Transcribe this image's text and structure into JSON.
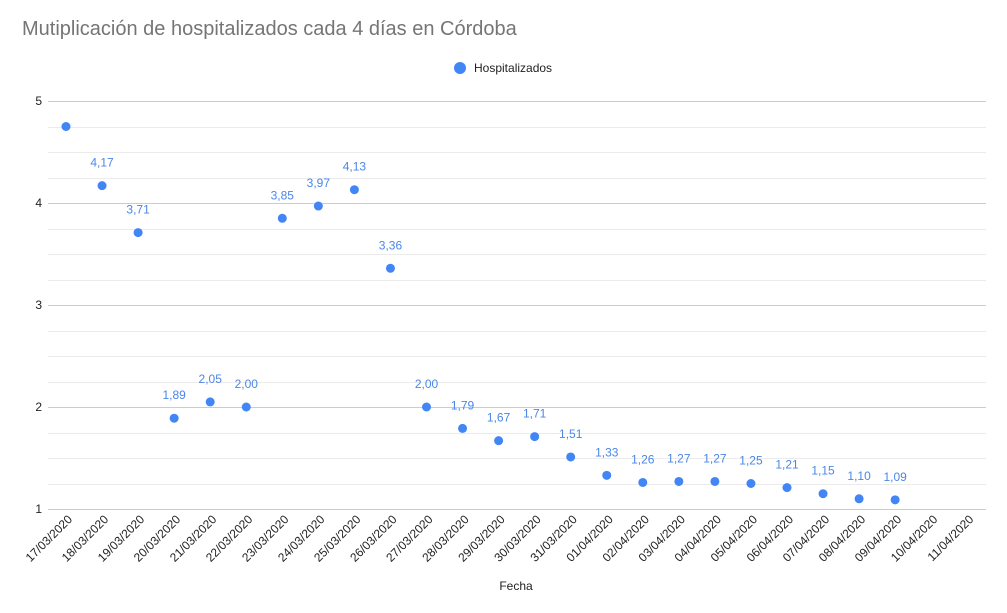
{
  "chart_data": {
    "type": "scatter",
    "title": "Mutiplicación de hospitalizados cada 4 días en Córdoba",
    "xlabel": "Fecha",
    "ylabel": "",
    "legend_position": "top",
    "grid": true,
    "ylim": [
      1,
      5
    ],
    "y_ticks": [
      "1",
      "2",
      "3",
      "4",
      "5"
    ],
    "categories": [
      "17/03/2020",
      "18/03/2020",
      "19/03/2020",
      "20/03/2020",
      "21/03/2020",
      "22/03/2020",
      "23/03/2020",
      "24/03/2020",
      "25/03/2020",
      "26/03/2020",
      "27/03/2020",
      "28/03/2020",
      "29/03/2020",
      "30/03/2020",
      "31/03/2020",
      "01/04/2020",
      "02/04/2020",
      "03/04/2020",
      "04/04/2020",
      "05/04/2020",
      "06/04/2020",
      "07/04/2020",
      "08/04/2020",
      "09/04/2020",
      "10/04/2020",
      "11/04/2020"
    ],
    "series": [
      {
        "name": "Hospitalizados",
        "color": "#4285f4",
        "label_color": "#4a86e8",
        "values": [
          4.75,
          4.17,
          3.71,
          1.89,
          2.05,
          2.0,
          3.85,
          3.97,
          4.13,
          3.36,
          2.0,
          1.79,
          1.67,
          1.71,
          1.51,
          1.33,
          1.26,
          1.27,
          1.27,
          1.25,
          1.21,
          1.15,
          1.1,
          1.09,
          null,
          null
        ],
        "labels": [
          "",
          "4,17",
          "3,71",
          "1,89",
          "2,05",
          "2,00",
          "3,85",
          "3,97",
          "4,13",
          "3,36",
          "2,00",
          "1,79",
          "1,67",
          "1,71",
          "1,51",
          "1,33",
          "1,26",
          "1,27",
          "1,27",
          "1,25",
          "1,21",
          "1,15",
          "1,10",
          "1,09",
          "",
          ""
        ]
      }
    ]
  }
}
